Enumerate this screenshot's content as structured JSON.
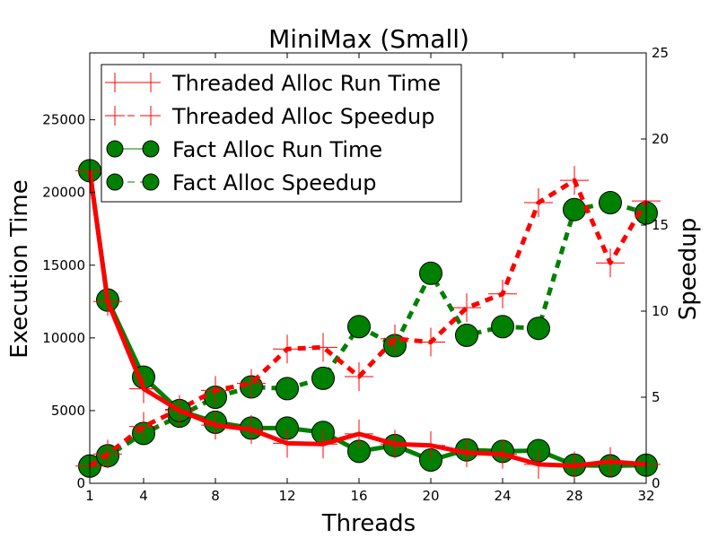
{
  "chart_data": {
    "type": "line",
    "title": "MiniMax (Small)",
    "xlabel": "Threads",
    "ylabel_left": "Execution Time",
    "ylabel_right": "Speedup",
    "xlim": [
      1,
      32
    ],
    "ylim_left": [
      0,
      29600
    ],
    "ylim_right": [
      0,
      25
    ],
    "x_ticks": [
      "1",
      "4",
      "8",
      "12",
      "16",
      "20",
      "24",
      "28",
      "32"
    ],
    "y_left_ticks": [
      "0",
      "5000",
      "10000",
      "15000",
      "20000",
      "25000"
    ],
    "y_right_ticks": [
      "0",
      "5",
      "10",
      "15",
      "20",
      "25"
    ],
    "legend_position": "top-left",
    "grid": false,
    "x": [
      1,
      2,
      4,
      6,
      8,
      10,
      12,
      14,
      16,
      18,
      20,
      22,
      24,
      26,
      28,
      30,
      32
    ],
    "series": [
      {
        "name": "Threaded Alloc Run Time",
        "axis": "left",
        "style": "solid",
        "marker": "plus",
        "color": "#ff0000",
        "values": [
          21500,
          12500,
          6500,
          5000,
          4000,
          3700,
          2750,
          2700,
          3400,
          2700,
          2600,
          2100,
          2000,
          1300,
          1200,
          1500,
          1300
        ]
      },
      {
        "name": "Threaded Alloc Speedup",
        "axis": "right",
        "style": "dashed",
        "marker": "plus",
        "color": "#ff0000",
        "values": [
          1.0,
          1.7,
          3.3,
          4.3,
          5.4,
          5.8,
          7.8,
          7.9,
          6.2,
          8.4,
          8.2,
          10.2,
          11.0,
          16.3,
          17.6,
          12.8,
          16.4
        ]
      },
      {
        "name": "Fact Alloc Run Time",
        "axis": "left",
        "style": "solid",
        "marker": "circle",
        "color": "#008000",
        "values": [
          21500,
          12600,
          7300,
          5000,
          4200,
          3800,
          3800,
          3500,
          2200,
          2600,
          1600,
          2300,
          2200,
          2250,
          1250,
          1200,
          1250
        ]
      },
      {
        "name": "Fact Alloc Speedup",
        "axis": "right",
        "style": "dashed",
        "marker": "circle",
        "color": "#008000",
        "values": [
          1.0,
          1.6,
          2.9,
          3.9,
          5.0,
          5.6,
          5.5,
          6.1,
          9.1,
          8.0,
          12.2,
          8.6,
          9.1,
          9.0,
          15.9,
          16.3,
          15.7
        ]
      }
    ]
  }
}
